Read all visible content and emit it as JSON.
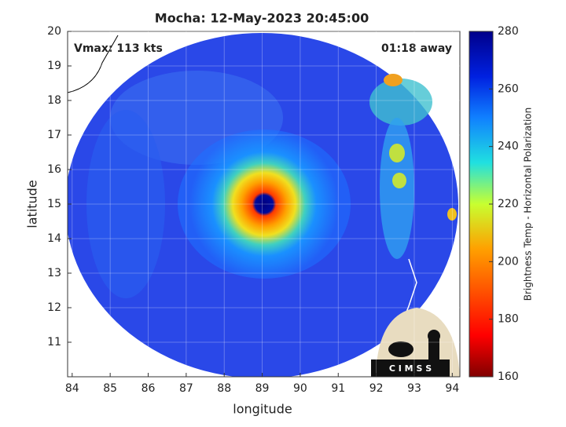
{
  "chart_data": {
    "type": "heatmap",
    "title": "Mocha: 12-May-2023 20:45:00",
    "annotations": [
      "Vmax: 113 kts",
      "01:18 away"
    ],
    "xlabel": "longitude",
    "ylabel": "latitude",
    "xlim": [
      83.88,
      94.2
    ],
    "xticks": [
      84,
      85,
      86,
      87,
      88,
      89,
      90,
      91,
      92,
      93,
      94
    ],
    "ylim": [
      10,
      20
    ],
    "yticks": [
      11,
      12,
      13,
      14,
      15,
      16,
      17,
      18,
      19,
      20
    ],
    "grid": true,
    "colorbar": {
      "label": "Brightness Temp - Horizontal Polarization",
      "lim": [
        160,
        280
      ],
      "ticks": [
        160,
        180,
        200,
        220,
        240,
        260,
        280
      ]
    },
    "logo_text": "C I M S S"
  }
}
